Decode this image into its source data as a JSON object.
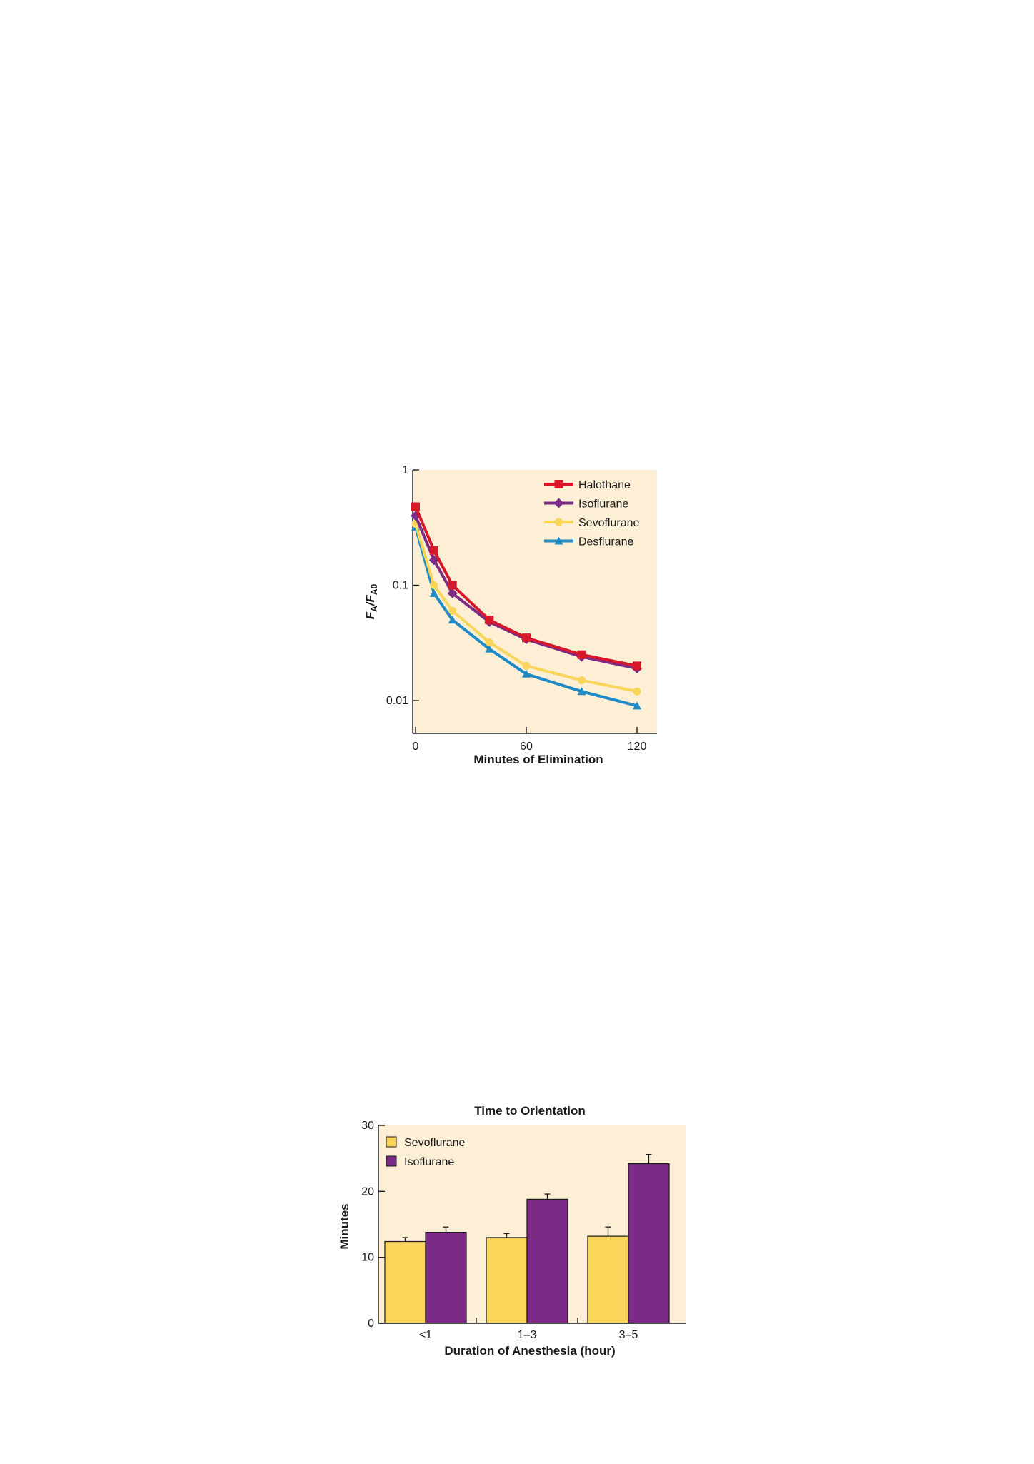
{
  "chart_data": [
    {
      "type": "line",
      "title": "",
      "xlabel": "Minutes of Elimination",
      "ylabel_main": "F",
      "ylabel_sub_1": "A",
      "ylabel_sep": "/F",
      "ylabel_sub_2": "A0",
      "y_scale": "log",
      "xlim": [
        0,
        130
      ],
      "ylim": [
        0.003,
        1
      ],
      "x_ticks": [
        0,
        60,
        120
      ],
      "x_tick_labels": [
        "0",
        "60",
        "120"
      ],
      "y_ticks": [
        0.01,
        0.1,
        1
      ],
      "y_tick_labels": [
        "0.01",
        "0.1",
        "1"
      ],
      "grid": false,
      "legend_position": "top-right",
      "background": "#fcefd6",
      "x": [
        0,
        10,
        20,
        40,
        60,
        90,
        120
      ],
      "series": [
        {
          "name": "Halothane",
          "color": "#d7182a",
          "marker": "square",
          "values": [
            0.48,
            0.2,
            0.1,
            0.05,
            0.035,
            0.025,
            0.02
          ]
        },
        {
          "name": "Isoflurane",
          "color": "#7b2a86",
          "marker": "diamond",
          "values": [
            0.4,
            0.165,
            0.085,
            0.048,
            0.034,
            0.024,
            0.019
          ]
        },
        {
          "name": "Sevoflurane",
          "color": "#f9d55a",
          "marker": "circle",
          "values": [
            0.34,
            0.1,
            0.06,
            0.032,
            0.02,
            0.015,
            0.012
          ]
        },
        {
          "name": "Desflurane",
          "color": "#1f8bc6",
          "marker": "triangle",
          "values": [
            0.32,
            0.085,
            0.05,
            0.028,
            0.017,
            0.012,
            0.009
          ]
        }
      ]
    },
    {
      "type": "bar",
      "title": "Time to Orientation",
      "xlabel": "Duration of Anesthesia (hour)",
      "ylabel": "Minutes",
      "ylim": [
        0,
        30
      ],
      "y_ticks": [
        0,
        10,
        20,
        30
      ],
      "y_tick_labels": [
        "0",
        "10",
        "20",
        "30"
      ],
      "categories": [
        "<1",
        "1–3",
        "3–5"
      ],
      "grid": false,
      "legend_position": "top-left",
      "background": "#fcefd6",
      "series": [
        {
          "name": "Sevoflurane",
          "color": "#f9d55a",
          "values": [
            12.4,
            13.0,
            13.2
          ],
          "errors": [
            0.6,
            0.6,
            1.4
          ]
        },
        {
          "name": "Isoflurane",
          "color": "#7b2a86",
          "values": [
            13.8,
            18.8,
            24.2
          ],
          "errors": [
            0.8,
            0.8,
            1.4
          ]
        }
      ]
    }
  ]
}
